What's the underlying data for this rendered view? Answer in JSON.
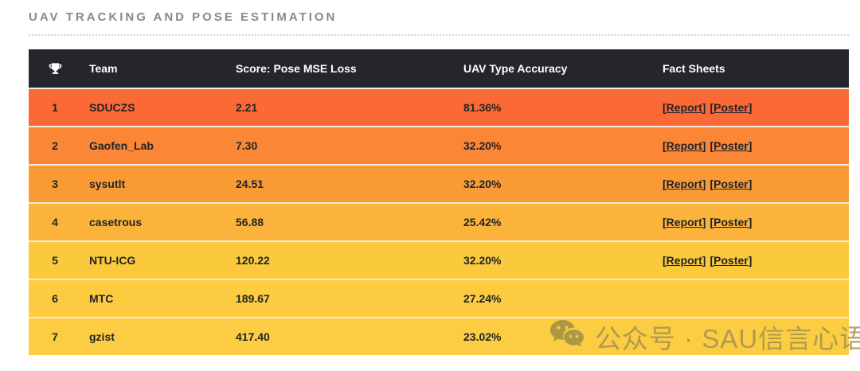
{
  "page": {
    "title": "UAV TRACKING AND POSE ESTIMATION"
  },
  "table": {
    "header": {
      "rank_icon": "trophy-icon",
      "team": "Team",
      "score": "Score: Pose MSE Loss",
      "accuracy": "UAV Type Accuracy",
      "facts": "Fact Sheets"
    },
    "brackets": {
      "open": "[",
      "close": "]"
    },
    "rows": [
      {
        "rank": "1",
        "team": "SDUCZS",
        "score": "2.21",
        "accuracy": "81.36%",
        "report": "Report",
        "poster": "Poster",
        "color": "#fb6937"
      },
      {
        "rank": "2",
        "team": "Gaofen_Lab",
        "score": "7.30",
        "accuracy": "32.20%",
        "report": "Report",
        "poster": "Poster",
        "color": "#fa8636"
      },
      {
        "rank": "3",
        "team": "sysutlt",
        "score": "24.51",
        "accuracy": "32.20%",
        "report": "Report",
        "poster": "Poster",
        "color": "#f99a35"
      },
      {
        "rank": "4",
        "team": "casetrous",
        "score": "56.88",
        "accuracy": "25.42%",
        "report": "Report",
        "poster": "Poster",
        "color": "#fbb33c"
      },
      {
        "rank": "5",
        "team": "NTU-ICG",
        "score": "120.22",
        "accuracy": "32.20%",
        "report": "Report",
        "poster": "Poster",
        "color": "#fbc93c"
      },
      {
        "rank": "6",
        "team": "MTC",
        "score": "189.67",
        "accuracy": "27.24%",
        "color": "#fccb3f"
      },
      {
        "rank": "7",
        "team": "gzist",
        "score": "417.40",
        "accuracy": "23.02%",
        "color": "#fccd42"
      }
    ]
  },
  "watermark": {
    "icon": "wechat-icon",
    "text": "公众号 · SAU信言心语"
  },
  "colors": {
    "header_bg": "#24262c",
    "header_text": "#ffffff",
    "title_text": "#87898c",
    "cell_text": "#212529",
    "row_divider": "#efece1",
    "watermark_text": "#a3934e"
  }
}
